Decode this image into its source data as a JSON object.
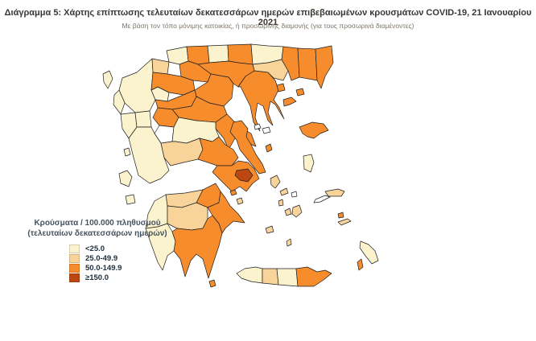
{
  "figure": {
    "title": "Διάγραμμα 5: Χάρτης επίπτωσης τελευταίων δεκατεσσάρων ημερών επιβεβαιωμένων κρουσμάτων COVID-19, 21 Ιανουαρίου 2021",
    "subtitle": "Με βάση τον τόπο μόνιμης κατοικίας, ή προσωρινής διαμονής (για τους προσωρινά διαμένοντες)"
  },
  "legend": {
    "title_line1": "Κρούσματα / 100.000 πληθυσμού",
    "title_line2": "(τελευταίων δεκατεσσάρων ημερών)",
    "classes": [
      {
        "label": "<25.0",
        "category": "lt25",
        "color": "#FAF3CD"
      },
      {
        "label": "25.0-49.9",
        "category": "c25_49",
        "color": "#F8D49B"
      },
      {
        "label": "50.0-149.9",
        "category": "c50_149",
        "color": "#F68C2C"
      },
      {
        "label": "≥150.0",
        "category": "ge150",
        "color": "#BC4710"
      }
    ],
    "palette": {
      "lt25": "#FAF3CD",
      "c25_49": "#F8D49B",
      "c50_149": "#F68C2C",
      "ge150": "#BC4710",
      "zero": "#FFFFFF"
    }
  },
  "chart_data": {
    "type": "choropleth-map",
    "title": "Διάγραμμα 5: Χάρτης επίπτωσης τελευταίων δεκατεσσάρων ημερών επιβεβαιωμένων κρουσμάτων COVID-19, 21 Ιανουαρίου 2021",
    "unit": "Κρούσματα / 100.000 πληθυσμού (τελευταίων δεκατεσσάρων ημερών)",
    "bins": [
      "<25.0",
      "25.0-49.9",
      "50.0-149.9",
      "≥150.0"
    ],
    "legend_position": "left-bottom",
    "regions": [
      {
        "id": "ioannina",
        "category": "lt25"
      },
      {
        "id": "thesprotia",
        "category": "lt25"
      },
      {
        "id": "preveza",
        "category": "lt25"
      },
      {
        "id": "arta",
        "category": "lt25"
      },
      {
        "id": "florina",
        "category": "lt25"
      },
      {
        "id": "kastoria",
        "category": "c25_49"
      },
      {
        "id": "grevena",
        "category": "lt25"
      },
      {
        "id": "kozani",
        "category": "c50_149"
      },
      {
        "id": "pella",
        "category": "c50_149"
      },
      {
        "id": "kilkis",
        "category": "lt25"
      },
      {
        "id": "serres",
        "category": "c50_149"
      },
      {
        "id": "drama",
        "category": "lt25"
      },
      {
        "id": "kavala",
        "category": "c25_49"
      },
      {
        "id": "xanthi",
        "category": "c50_149"
      },
      {
        "id": "rhodopi",
        "category": "c50_149"
      },
      {
        "id": "evros",
        "category": "c50_149"
      },
      {
        "id": "thessaloniki",
        "category": "c50_149"
      },
      {
        "id": "imathia",
        "category": "c50_149"
      },
      {
        "id": "pieria",
        "category": "c50_149"
      },
      {
        "id": "chalkidiki",
        "category": "c50_149"
      },
      {
        "id": "trikala",
        "category": "c50_149"
      },
      {
        "id": "larissa",
        "category": "c50_149"
      },
      {
        "id": "karditsa",
        "category": "c50_149"
      },
      {
        "id": "magnesia",
        "category": "c50_149"
      },
      {
        "id": "evrytania",
        "category": "zero"
      },
      {
        "id": "fthiotida",
        "category": "lt25"
      },
      {
        "id": "aetolia",
        "category": "lt25"
      },
      {
        "id": "phocis",
        "category": "c25_49"
      },
      {
        "id": "boeotia",
        "category": "c50_149"
      },
      {
        "id": "euboea",
        "category": "c50_149"
      },
      {
        "id": "attica",
        "category": "c50_149"
      },
      {
        "id": "athens",
        "category": "ge150"
      },
      {
        "id": "corinthia",
        "category": "c50_149"
      },
      {
        "id": "achaia",
        "category": "c25_49"
      },
      {
        "id": "elis",
        "category": "lt25"
      },
      {
        "id": "arcadia",
        "category": "c25_49"
      },
      {
        "id": "argolida",
        "category": "c50_149"
      },
      {
        "id": "messenia",
        "category": "lt25"
      },
      {
        "id": "laconia",
        "category": "c50_149"
      },
      {
        "id": "kythira",
        "category": "c50_149"
      },
      {
        "id": "chania",
        "category": "lt25"
      },
      {
        "id": "rethymno",
        "category": "c25_49"
      },
      {
        "id": "heraklion",
        "category": "lt25"
      },
      {
        "id": "lasithi",
        "category": "c50_149"
      },
      {
        "id": "corfu",
        "category": "lt25"
      },
      {
        "id": "lefkada",
        "category": "lt25"
      },
      {
        "id": "kefalonia",
        "category": "lt25"
      },
      {
        "id": "zakynthos",
        "category": "lt25"
      },
      {
        "id": "lesbos",
        "category": "c50_149"
      },
      {
        "id": "chios",
        "category": "lt25"
      },
      {
        "id": "samos",
        "category": "c25_49"
      },
      {
        "id": "ikaria",
        "category": "zero"
      },
      {
        "id": "limnos",
        "category": "c50_149"
      },
      {
        "id": "thasos",
        "category": "c50_149"
      },
      {
        "id": "samothrace",
        "category": "c50_149"
      },
      {
        "id": "skiathos",
        "category": "zero"
      },
      {
        "id": "skopelos",
        "category": "zero"
      },
      {
        "id": "skyros",
        "category": "c50_149"
      },
      {
        "id": "andros",
        "category": "c25_49"
      },
      {
        "id": "tinos",
        "category": "c25_49"
      },
      {
        "id": "mykonos",
        "category": "zero"
      },
      {
        "id": "syros",
        "category": "c25_49"
      },
      {
        "id": "paros",
        "category": "c25_49"
      },
      {
        "id": "naxos",
        "category": "c25_49"
      },
      {
        "id": "milos",
        "category": "c25_49"
      },
      {
        "id": "santorini",
        "category": "c25_49"
      },
      {
        "id": "kos",
        "category": "c25_49"
      },
      {
        "id": "kalymnos",
        "category": "c50_149"
      },
      {
        "id": "rhodes",
        "category": "lt25"
      },
      {
        "id": "karpathos",
        "category": "c50_149"
      },
      {
        "id": "aegina",
        "category": "c25_49"
      },
      {
        "id": "salamina",
        "category": "c50_149"
      }
    ]
  },
  "map_style": {
    "border_color": "#1f1f1f",
    "sea_color": "#FFFFFF"
  }
}
